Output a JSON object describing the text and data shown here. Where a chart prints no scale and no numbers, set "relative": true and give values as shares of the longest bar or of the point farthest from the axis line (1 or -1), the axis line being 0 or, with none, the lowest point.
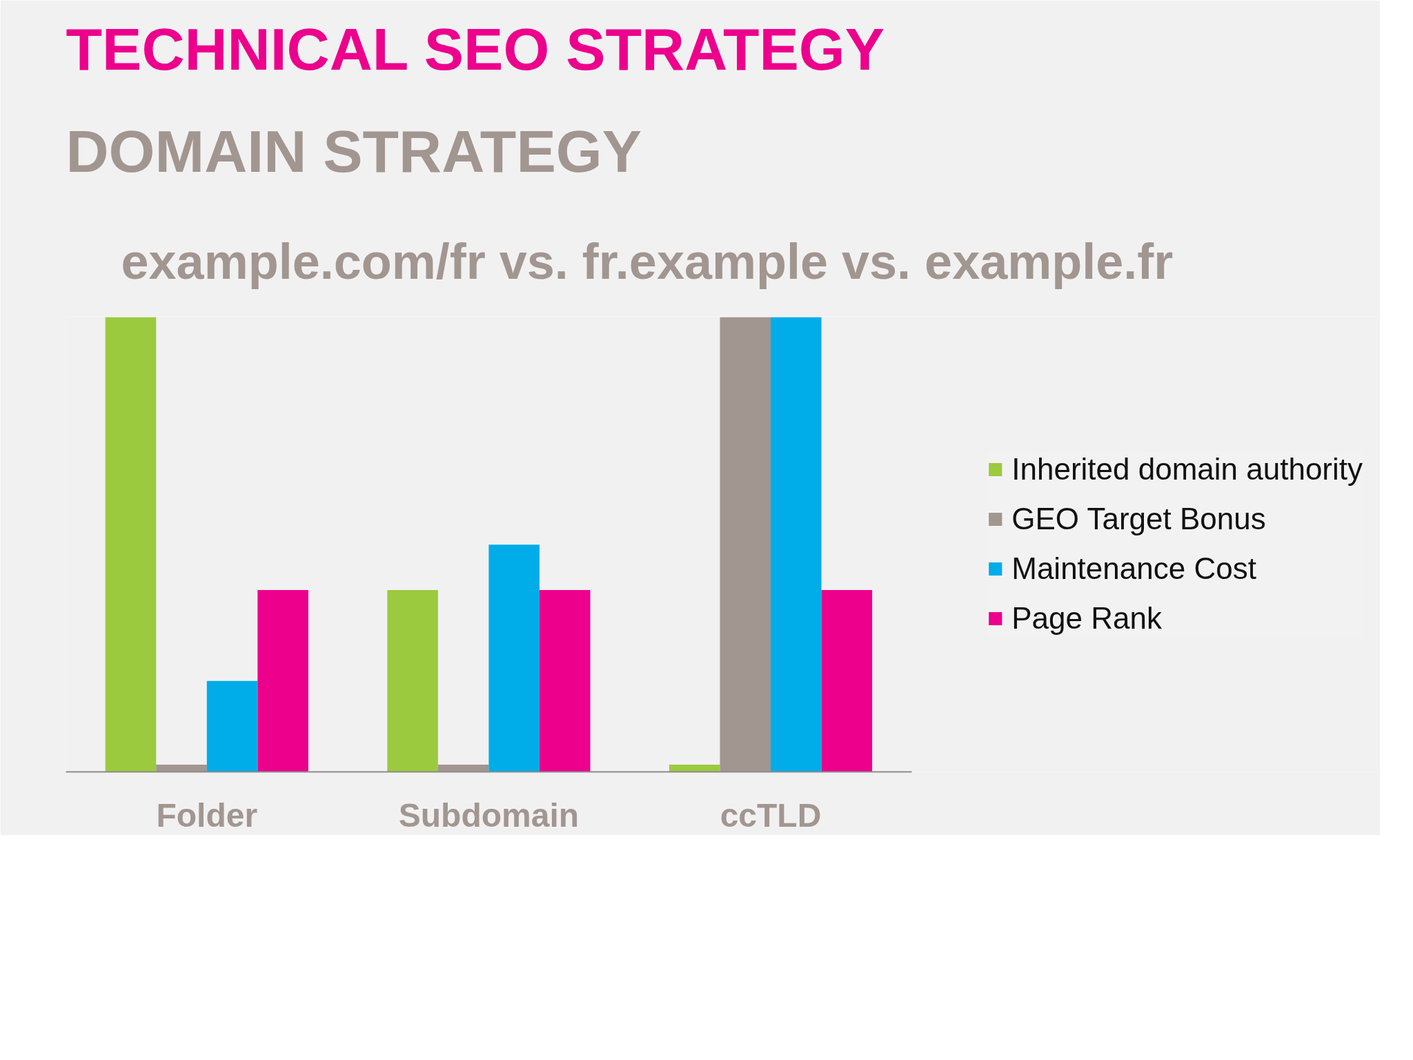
{
  "chart_data": {
    "type": "bar",
    "title": "TECHNICAL SEO STRATEGY",
    "subtitle": "DOMAIN STRATEGY",
    "annotations": [
      "example.com/fr vs. fr.example vs. example.fr"
    ],
    "categories": [
      "Folder",
      "Subdomain",
      "ccTLD"
    ],
    "relative": true,
    "series": [
      {
        "name": "Inherited domain authority",
        "color": "#9bca3e",
        "values": [
          1,
          0.4,
          0.016
        ]
      },
      {
        "name": "GEO Target Bonus",
        "color": "#a29690",
        "values": [
          0.016,
          0.016,
          1
        ]
      },
      {
        "name": "Maintenance Cost",
        "color": "#00ade8",
        "values": [
          0.2,
          0.5,
          1
        ]
      },
      {
        "name": "Page Rank",
        "color": "#ec008c",
        "values": [
          0.4,
          0.4,
          0.4
        ]
      }
    ],
    "legend": "right",
    "grid": false
  }
}
